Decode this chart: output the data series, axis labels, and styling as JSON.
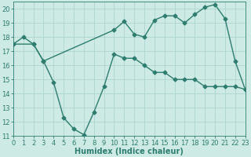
{
  "line1_x": [
    0,
    1,
    2,
    3,
    10,
    11,
    12,
    13,
    14,
    15,
    16,
    17,
    18,
    19,
    20,
    21,
    22,
    23
  ],
  "line1_y": [
    17.5,
    18.0,
    17.5,
    16.3,
    18.5,
    19.1,
    18.2,
    18.0,
    19.2,
    19.5,
    19.5,
    19.0,
    19.6,
    20.1,
    20.3,
    19.3,
    16.3,
    14.3
  ],
  "line2_x": [
    0,
    2,
    3,
    4,
    5,
    6,
    7,
    8,
    9,
    10,
    11,
    12,
    13,
    14,
    15,
    16,
    17,
    18,
    19,
    20,
    21,
    22,
    23
  ],
  "line2_y": [
    17.5,
    17.5,
    16.3,
    14.8,
    12.3,
    11.5,
    11.1,
    12.7,
    14.5,
    16.8,
    16.5,
    16.5,
    16.0,
    15.5,
    15.5,
    15.0,
    15.0,
    15.0,
    14.5,
    14.5,
    14.5,
    14.5,
    14.3
  ],
  "line_color": "#2e7d6e",
  "bg_color": "#cdeae5",
  "grid_color": "#aed4cf",
  "xlabel": "Humidex (Indice chaleur)",
  "xlim": [
    0,
    23
  ],
  "ylim": [
    11,
    20.5
  ],
  "yticks": [
    11,
    12,
    13,
    14,
    15,
    16,
    17,
    18,
    19,
    20
  ],
  "xticks": [
    0,
    1,
    2,
    3,
    4,
    5,
    6,
    7,
    8,
    9,
    10,
    11,
    12,
    13,
    14,
    15,
    16,
    17,
    18,
    19,
    20,
    21,
    22,
    23
  ],
  "marker": "D",
  "markersize": 2.5,
  "linewidth": 1.0,
  "xlabel_fontsize": 7,
  "tick_fontsize": 6
}
